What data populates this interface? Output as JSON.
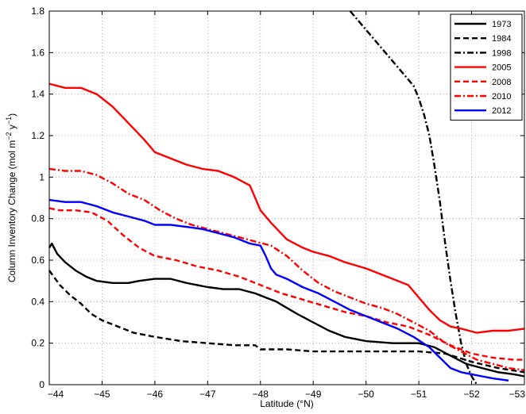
{
  "chart_data": {
    "type": "line",
    "xlabel": "Latitude (°N)",
    "ylabel_parts": [
      "Column Inventory Change  (mol m",
      "−2",
      " y",
      "−1",
      ")"
    ],
    "xlim": [
      -44,
      -53
    ],
    "ylim": [
      0,
      1.8
    ],
    "x_ticks": [
      -44,
      -45,
      -46,
      -47,
      -48,
      -49,
      -50,
      -51,
      -52,
      -53
    ],
    "x_tick_labels": [
      "−44",
      "−45",
      "−46",
      "−47",
      "−48",
      "−49",
      "−50",
      "−51",
      "−52",
      "−53"
    ],
    "y_ticks": [
      0,
      0.2,
      0.4,
      0.6,
      0.8,
      1,
      1.2,
      1.4,
      1.6,
      1.8
    ],
    "y_tick_labels": [
      "0",
      "0.2",
      "0.4",
      "0.6",
      "0.8",
      "1",
      "1.2",
      "1.4",
      "1.6",
      "1.8"
    ],
    "grid": true,
    "legend_position": "top-right",
    "series": [
      {
        "name": "1973",
        "color": "#000000",
        "dash": "solid",
        "x": [
          -44.0,
          -44.05,
          -44.15,
          -44.3,
          -44.5,
          -44.7,
          -44.9,
          -45.2,
          -45.5,
          -45.7,
          -46.0,
          -46.3,
          -46.6,
          -47.0,
          -47.3,
          -47.6,
          -47.9,
          -48.1,
          -48.3,
          -48.5,
          -48.7,
          -49.0,
          -49.3,
          -49.6,
          -50.0,
          -50.5,
          -51.0,
          -51.3,
          -51.6,
          -51.9,
          -52.2,
          -52.5,
          -52.8,
          -53.0
        ],
        "y": [
          0.66,
          0.68,
          0.63,
          0.59,
          0.55,
          0.52,
          0.5,
          0.49,
          0.49,
          0.5,
          0.51,
          0.51,
          0.49,
          0.47,
          0.46,
          0.46,
          0.44,
          0.42,
          0.4,
          0.37,
          0.34,
          0.3,
          0.26,
          0.23,
          0.21,
          0.2,
          0.2,
          0.18,
          0.14,
          0.1,
          0.08,
          0.06,
          0.05,
          0.04
        ]
      },
      {
        "name": "1984",
        "color": "#000000",
        "dash": "dashed",
        "x": [
          -44.0,
          -44.2,
          -44.4,
          -44.6,
          -44.8,
          -45.0,
          -45.3,
          -45.6,
          -46.0,
          -46.5,
          -47.0,
          -47.5,
          -47.9,
          -48.0,
          -48.5,
          -49.0,
          -49.5,
          -50.0,
          -50.5,
          -51.0,
          -51.5,
          -52.0,
          -52.5,
          -53.0
        ],
        "y": [
          0.55,
          0.48,
          0.43,
          0.39,
          0.34,
          0.31,
          0.28,
          0.25,
          0.23,
          0.21,
          0.2,
          0.19,
          0.19,
          0.17,
          0.17,
          0.16,
          0.16,
          0.16,
          0.16,
          0.16,
          0.15,
          0.11,
          0.08,
          0.06
        ]
      },
      {
        "name": "1998",
        "color": "#000000",
        "dash": "dashdot",
        "x": [
          -49.7,
          -49.9,
          -50.1,
          -50.3,
          -50.5,
          -50.7,
          -50.9,
          -51.0,
          -51.1,
          -51.2,
          -51.3,
          -51.4,
          -51.5,
          -51.6,
          -51.7,
          -51.8,
          -51.9,
          -52.0,
          -52.1
        ],
        "y": [
          1.8,
          1.74,
          1.68,
          1.62,
          1.56,
          1.5,
          1.44,
          1.38,
          1.3,
          1.2,
          1.05,
          0.88,
          0.68,
          0.5,
          0.34,
          0.2,
          0.1,
          0.04,
          0.0
        ]
      },
      {
        "name": "2005",
        "color": "#ff0000",
        "dash": "solid",
        "x": [
          -44.0,
          -44.3,
          -44.6,
          -44.9,
          -45.2,
          -45.5,
          -45.8,
          -46.0,
          -46.3,
          -46.6,
          -46.9,
          -47.2,
          -47.5,
          -47.8,
          -48.0,
          -48.2,
          -48.5,
          -48.8,
          -49.0,
          -49.3,
          -49.6,
          -50.0,
          -50.4,
          -50.8,
          -51.0,
          -51.2,
          -51.4,
          -51.6,
          -51.8,
          -52.1,
          -52.4,
          -52.7,
          -53.0
        ],
        "y": [
          1.45,
          1.43,
          1.43,
          1.4,
          1.34,
          1.26,
          1.18,
          1.12,
          1.09,
          1.06,
          1.04,
          1.03,
          1.0,
          0.96,
          0.84,
          0.78,
          0.7,
          0.66,
          0.64,
          0.62,
          0.59,
          0.56,
          0.52,
          0.48,
          0.42,
          0.36,
          0.31,
          0.28,
          0.27,
          0.25,
          0.26,
          0.26,
          0.27
        ]
      },
      {
        "name": "2008",
        "color": "#ff0000",
        "dash": "dashed",
        "x": [
          -44.0,
          -44.2,
          -44.5,
          -44.8,
          -45.1,
          -45.4,
          -45.7,
          -46.0,
          -46.4,
          -46.8,
          -47.2,
          -47.6,
          -48.0,
          -48.4,
          -48.8,
          -49.2,
          -49.6,
          -50.0,
          -50.4,
          -50.8,
          -51.2,
          -51.6,
          -52.0,
          -52.4,
          -52.8,
          -53.0
        ],
        "y": [
          0.85,
          0.84,
          0.84,
          0.83,
          0.79,
          0.72,
          0.66,
          0.62,
          0.6,
          0.57,
          0.55,
          0.52,
          0.48,
          0.44,
          0.41,
          0.38,
          0.35,
          0.33,
          0.3,
          0.28,
          0.24,
          0.19,
          0.15,
          0.13,
          0.12,
          0.12
        ]
      },
      {
        "name": "2010",
        "color": "#ff0000",
        "dash": "dashdot",
        "x": [
          -44.0,
          -44.3,
          -44.6,
          -44.9,
          -45.2,
          -45.5,
          -45.8,
          -46.1,
          -46.4,
          -46.7,
          -47.0,
          -47.3,
          -47.6,
          -47.9,
          -48.2,
          -48.5,
          -48.8,
          -49.1,
          -49.4,
          -49.7,
          -50.0,
          -50.3,
          -50.6,
          -50.9,
          -51.2,
          -51.5,
          -51.8,
          -52.1,
          -52.4,
          -52.7,
          -53.0
        ],
        "y": [
          1.04,
          1.03,
          1.03,
          1.01,
          0.97,
          0.92,
          0.89,
          0.84,
          0.8,
          0.77,
          0.75,
          0.73,
          0.71,
          0.69,
          0.67,
          0.62,
          0.55,
          0.49,
          0.45,
          0.42,
          0.39,
          0.37,
          0.34,
          0.3,
          0.26,
          0.2,
          0.16,
          0.12,
          0.1,
          0.08,
          0.07
        ]
      },
      {
        "name": "2012",
        "color": "#0000ff",
        "dash": "solid",
        "x": [
          -44.0,
          -44.3,
          -44.6,
          -44.9,
          -45.2,
          -45.5,
          -45.8,
          -46.0,
          -46.3,
          -46.6,
          -46.9,
          -47.2,
          -47.5,
          -47.8,
          -48.0,
          -48.1,
          -48.2,
          -48.3,
          -48.5,
          -48.8,
          -49.1,
          -49.4,
          -49.7,
          -50.0,
          -50.3,
          -50.6,
          -50.9,
          -51.2,
          -51.4,
          -51.6,
          -51.8,
          -52.0,
          -52.2,
          -52.4,
          -52.7
        ],
        "y": [
          0.89,
          0.88,
          0.88,
          0.86,
          0.83,
          0.81,
          0.79,
          0.77,
          0.77,
          0.76,
          0.75,
          0.73,
          0.71,
          0.68,
          0.67,
          0.62,
          0.56,
          0.53,
          0.51,
          0.47,
          0.44,
          0.4,
          0.36,
          0.33,
          0.3,
          0.27,
          0.23,
          0.18,
          0.13,
          0.08,
          0.06,
          0.05,
          0.04,
          0.03,
          0.02
        ]
      }
    ]
  }
}
